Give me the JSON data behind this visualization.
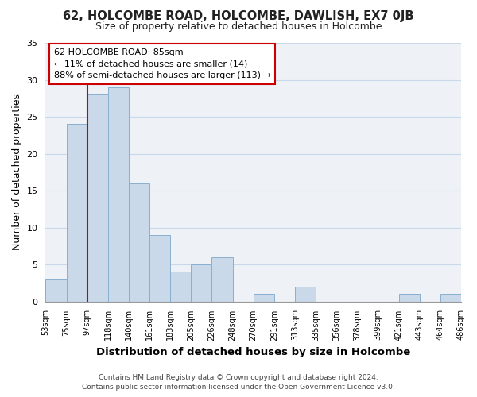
{
  "title": "62, HOLCOMBE ROAD, HOLCOMBE, DAWLISH, EX7 0JB",
  "subtitle": "Size of property relative to detached houses in Holcombe",
  "xlabel": "Distribution of detached houses by size in Holcombe",
  "ylabel": "Number of detached properties",
  "footer_lines": [
    "Contains HM Land Registry data © Crown copyright and database right 2024.",
    "Contains public sector information licensed under the Open Government Licence v3.0."
  ],
  "bin_labels": [
    "53sqm",
    "75sqm",
    "97sqm",
    "118sqm",
    "140sqm",
    "161sqm",
    "183sqm",
    "205sqm",
    "226sqm",
    "248sqm",
    "270sqm",
    "291sqm",
    "313sqm",
    "335sqm",
    "356sqm",
    "378sqm",
    "399sqm",
    "421sqm",
    "443sqm",
    "464sqm",
    "486sqm"
  ],
  "bar_values": [
    3,
    24,
    28,
    29,
    16,
    9,
    4,
    5,
    6,
    0,
    1,
    0,
    2,
    0,
    0,
    0,
    0,
    1,
    0,
    1
  ],
  "bar_color": "#c9d9ea",
  "bar_edge_color": "#8ab0d0",
  "reference_line_color": "#cc0000",
  "reference_line_x": 1.5,
  "annotation_text": "62 HOLCOMBE ROAD: 85sqm\n← 11% of detached houses are smaller (14)\n88% of semi-detached houses are larger (113) →",
  "annotation_box_color": "#ffffff",
  "annotation_box_edge_color": "#cc0000",
  "ylim": [
    0,
    35
  ],
  "yticks": [
    0,
    5,
    10,
    15,
    20,
    25,
    30,
    35
  ],
  "grid_color": "#c8d8e8",
  "background_color": "#eef2f7",
  "fig_background_color": "#ffffff"
}
